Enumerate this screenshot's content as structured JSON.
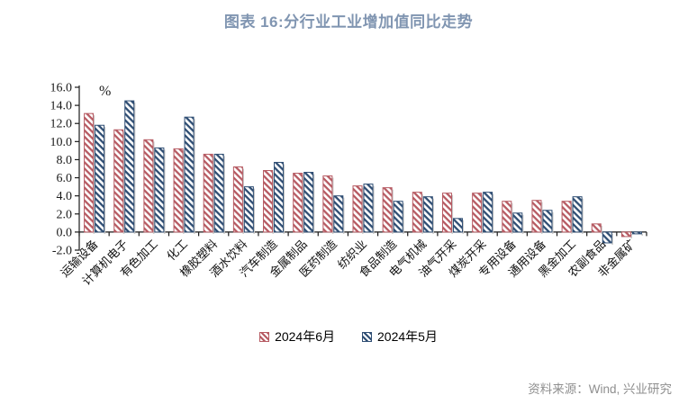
{
  "title": "图表 16:分行业工业增加值同比走势",
  "source_note": "资料来源：Wind, 兴业研究",
  "colors": {
    "title_text": "#8095b1",
    "source_text": "#8f8f8f",
    "axis": "#1a1a1a",
    "june_red": "#b65a62",
    "may_blue": "#2e4d73",
    "bar_shadow": "#c9c9c9"
  },
  "chart_data": {
    "type": "bar",
    "title": "图表 16:分行业工业增加值同比走势",
    "unit_label": "%",
    "xlabel": "",
    "ylabel": "",
    "ylim": [
      -2.0,
      16.0
    ],
    "ytick_step": 2.0,
    "grid": false,
    "legend_position": "bottom",
    "categories": [
      "运输设备",
      "计算机电子",
      "有色加工",
      "化工",
      "橡胶塑料",
      "酒水饮料",
      "汽车制造",
      "金属制品",
      "医药制造",
      "纺织业",
      "食品制造",
      "电气机械",
      "油气开采",
      "煤炭开采",
      "专用设备",
      "通用设备",
      "黑金加工",
      "农副食品",
      "非金属矿"
    ],
    "series": [
      {
        "name": "2024年6月",
        "color": "#b65a62",
        "hatch": "diagonal-down",
        "values": [
          13.1,
          11.3,
          10.2,
          9.2,
          8.6,
          7.2,
          6.8,
          6.5,
          6.2,
          5.1,
          4.9,
          4.4,
          4.3,
          4.3,
          3.4,
          3.5,
          3.4,
          0.9,
          -0.5
        ]
      },
      {
        "name": "2024年5月",
        "color": "#2e4d73",
        "hatch": "diagonal-down",
        "values": [
          11.8,
          14.5,
          9.3,
          12.7,
          8.6,
          5.0,
          7.7,
          6.6,
          4.0,
          5.3,
          3.4,
          3.9,
          1.5,
          4.4,
          2.1,
          2.4,
          3.9,
          -1.2,
          -0.2
        ]
      }
    ]
  }
}
